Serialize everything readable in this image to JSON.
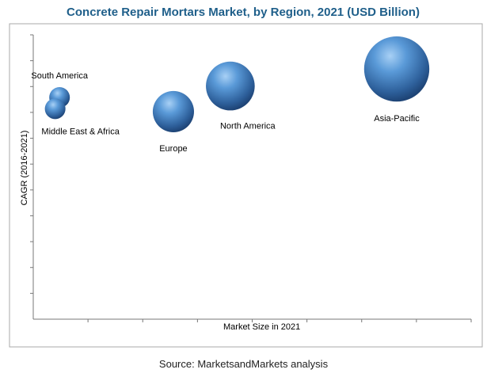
{
  "chart_data": {
    "type": "scatter",
    "title": "Concrete Repair Mortars Market, by Region, 2021 (USD Billion)",
    "xlabel": "Market Size in 2021",
    "ylabel": "CAGR (2016-2021)",
    "series_color": "#3a78b8",
    "points": [
      {
        "label": "South America",
        "x": 0.06,
        "y": 0.78,
        "size": 0.25
      },
      {
        "label": "Middle East & Africa",
        "x": 0.05,
        "y": 0.74,
        "size": 0.25
      },
      {
        "label": "Europe",
        "x": 0.32,
        "y": 0.73,
        "size": 1.0
      },
      {
        "label": "North America",
        "x": 0.45,
        "y": 0.82,
        "size": 1.4
      },
      {
        "label": "Asia-Pacific",
        "x": 0.83,
        "y": 0.88,
        "size": 2.5
      }
    ]
  },
  "source": "Source: MarketsandMarkets analysis"
}
